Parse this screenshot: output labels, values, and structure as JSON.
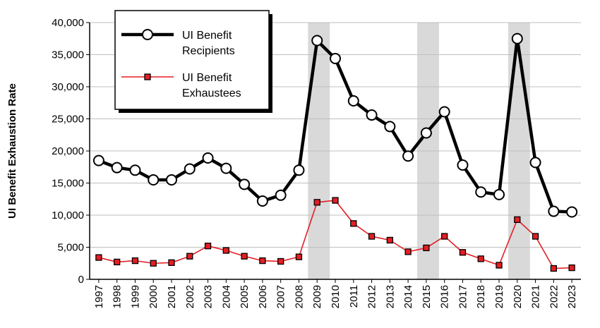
{
  "chart_data": {
    "type": "line",
    "title": "",
    "xlabel": "",
    "ylabel": "UI Benefit Exhaustion Rate",
    "ylim": [
      0,
      40000
    ],
    "yticks": [
      "0",
      "5,000",
      "10,000",
      "15,000",
      "20,000",
      "25,000",
      "30,000",
      "35,000",
      "40,000"
    ],
    "grid": true,
    "legend_position": "top-left",
    "categories": [
      "1997",
      "1998",
      "1999",
      "2000",
      "2001",
      "2002",
      "2003",
      "2004",
      "2005",
      "2006",
      "2007",
      "2008",
      "2009",
      "2010",
      "2011",
      "2012",
      "2013",
      "2014",
      "2015",
      "2016",
      "2017",
      "2018",
      "2019",
      "2020",
      "2021",
      "2022",
      "2023"
    ],
    "shaded_periods": [
      [
        "2009",
        "2010"
      ],
      [
        "2015",
        "2016"
      ],
      [
        "2020",
        "2021"
      ]
    ],
    "series": [
      {
        "name": "UI Benefit Recipients",
        "legend_lines": [
          "UI Benefit",
          "Recipients"
        ],
        "color": "#000000",
        "marker": "circle",
        "values": [
          18500,
          17400,
          17000,
          15500,
          15500,
          17200,
          18900,
          17300,
          14800,
          12200,
          13100,
          17000,
          37200,
          34400,
          27800,
          25600,
          23800,
          19200,
          22800,
          26100,
          17800,
          13600,
          13200,
          37500,
          18200,
          10600,
          10500
        ]
      },
      {
        "name": "UI Benefit Exhaustees",
        "legend_lines": [
          "UI Benefit",
          "Exhaustees"
        ],
        "color": "#e31e24",
        "marker": "square",
        "values": [
          3400,
          2700,
          2900,
          2500,
          2600,
          3600,
          5200,
          4500,
          3600,
          2900,
          2800,
          3500,
          12000,
          12300,
          8700,
          6700,
          6100,
          4300,
          4900,
          6700,
          4200,
          3200,
          2200,
          9300,
          6700,
          1700,
          1800
        ]
      }
    ]
  }
}
